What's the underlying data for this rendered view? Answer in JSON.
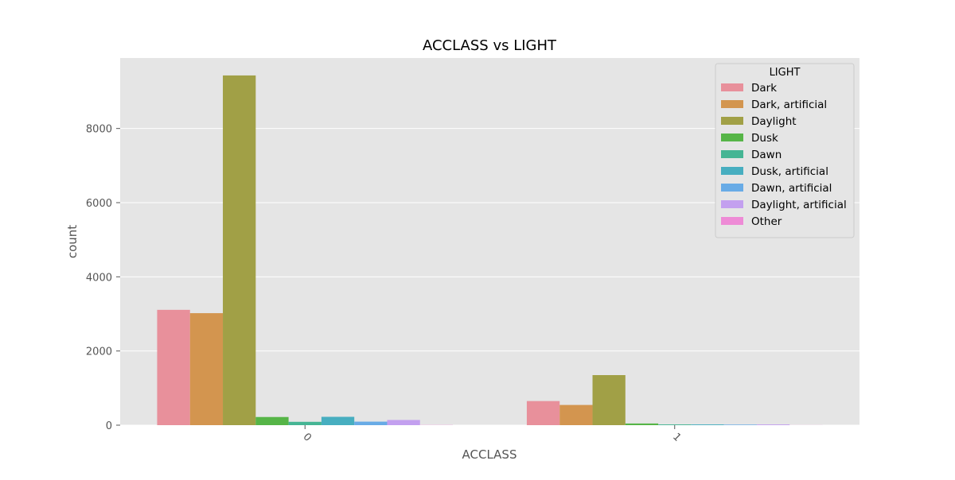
{
  "chart_data": {
    "type": "bar",
    "title": "ACCLASS vs LIGHT",
    "xlabel": "ACCLASS",
    "ylabel": "count",
    "categories": [
      "0",
      "1"
    ],
    "ylim": [
      0,
      9900
    ],
    "yticks": [
      0,
      2000,
      4000,
      6000,
      8000
    ],
    "grid": true,
    "legend": {
      "title": "LIGHT",
      "position": "top-right"
    },
    "series": [
      {
        "name": "Dark",
        "color": "#e8909b",
        "values": [
          3110,
          650
        ]
      },
      {
        "name": "Dark, artificial",
        "color": "#d3954f",
        "values": [
          3020,
          545
        ]
      },
      {
        "name": "Daylight",
        "color": "#a1a046",
        "values": [
          9430,
          1350
        ]
      },
      {
        "name": "Dusk",
        "color": "#56b547",
        "values": [
          220,
          45
        ]
      },
      {
        "name": "Dawn",
        "color": "#45b594",
        "values": [
          90,
          20
        ]
      },
      {
        "name": "Dusk, artificial",
        "color": "#47aec0",
        "values": [
          225,
          20
        ]
      },
      {
        "name": "Dawn, artificial",
        "color": "#68abe6",
        "values": [
          95,
          15
        ]
      },
      {
        "name": "Daylight, artificial",
        "color": "#c3a0ef",
        "values": [
          140,
          20
        ]
      },
      {
        "name": "Other",
        "color": "#ee8bd6",
        "values": [
          5,
          2
        ]
      }
    ]
  }
}
